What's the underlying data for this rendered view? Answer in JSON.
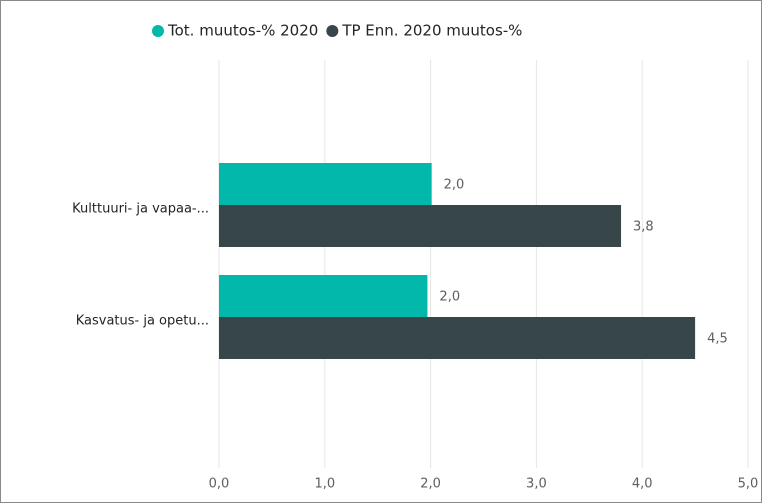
{
  "chart_data": {
    "type": "bar",
    "orientation": "horizontal",
    "categories": [
      "Kulttuuri- ja vapaa-...",
      "Kasvatus- ja opetu..."
    ],
    "series": [
      {
        "name": "Tot. muutos-% 2020",
        "color": "#01b8aa",
        "values": [
          2.01,
          1.97
        ],
        "value_labels": [
          "2,0",
          "2,0"
        ]
      },
      {
        "name": "TP Enn. 2020 muutos-%",
        "color": "#374649",
        "values": [
          3.8,
          4.5
        ],
        "value_labels": [
          "3,8",
          "4,5"
        ]
      }
    ],
    "xlim": [
      0,
      5
    ],
    "xticks": [
      {
        "value": 0,
        "label": "0,0"
      },
      {
        "value": 1,
        "label": "1,0"
      },
      {
        "value": 2,
        "label": "2,0"
      },
      {
        "value": 3,
        "label": "3,0"
      },
      {
        "value": 4,
        "label": "4,0"
      },
      {
        "value": 5,
        "label": "5,0"
      }
    ],
    "grid": true,
    "legend": "top"
  }
}
